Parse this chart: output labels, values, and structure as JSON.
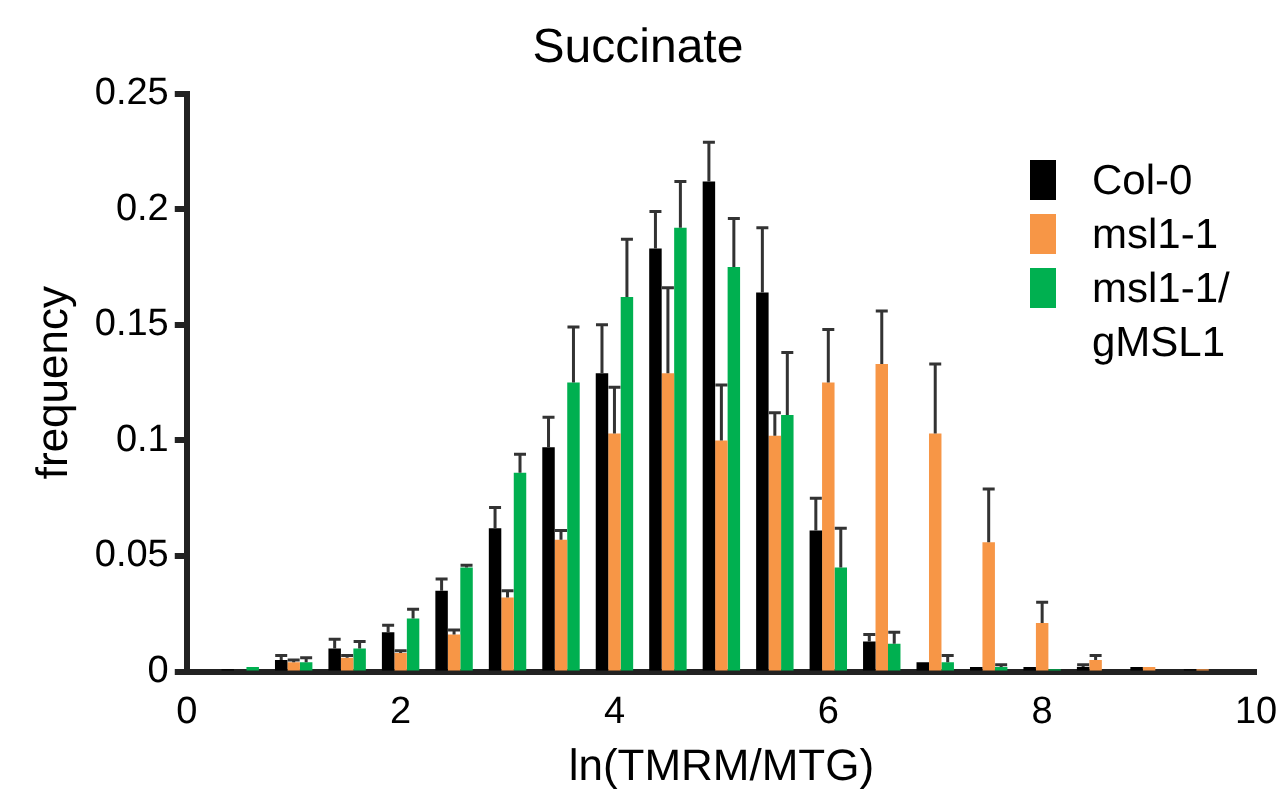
{
  "chart_data": {
    "type": "bar",
    "title": "Succinate",
    "xlabel": "ln(TMRM/MTG)",
    "ylabel": "frequency",
    "x": [
      0.5,
      1.0,
      1.5,
      2.0,
      2.5,
      3.0,
      3.5,
      4.0,
      4.5,
      5.0,
      5.5,
      6.0,
      6.5,
      7.0,
      7.5,
      8.0,
      8.5,
      9.0,
      9.5
    ],
    "series": [
      {
        "name": "Col-0",
        "color": "#000000",
        "values": [
          0.001,
          0.005,
          0.01,
          0.017,
          0.035,
          0.062,
          0.097,
          0.129,
          0.183,
          0.212,
          0.164,
          0.061,
          0.013,
          0.004,
          0.002,
          0.002,
          0.002,
          0.002,
          0.001
        ],
        "errors": [
          null,
          0.002,
          0.004,
          0.003,
          0.005,
          0.009,
          0.013,
          0.021,
          0.016,
          0.017,
          0.028,
          0.014,
          0.003,
          null,
          null,
          null,
          0.001,
          null,
          null
        ]
      },
      {
        "name": "msl1-1",
        "color": "#f79646",
        "values": [
          0,
          0.004,
          0.006,
          0.008,
          0.016,
          0.032,
          0.057,
          0.103,
          0.129,
          0.1,
          0.102,
          0.125,
          0.133,
          0.103,
          0.056,
          0.021,
          0.005,
          0.002,
          0.001
        ],
        "errors": [
          null,
          0.001,
          0.001,
          0.001,
          0.002,
          0.003,
          0.004,
          0.02,
          0.037,
          0.024,
          0.01,
          0.023,
          0.023,
          0.03,
          0.023,
          0.009,
          0.002,
          null,
          null
        ]
      },
      {
        "name": "msl1-1/gMSL1",
        "color": "#00b050",
        "values": [
          0.002,
          0.004,
          0.01,
          0.023,
          0.045,
          0.086,
          0.125,
          0.162,
          0.192,
          0.175,
          0.111,
          0.045,
          0.012,
          0.004,
          0.002,
          0.001,
          0,
          0,
          0
        ],
        "errors": [
          null,
          0.002,
          0.003,
          0.004,
          0.001,
          0.008,
          0.024,
          0.025,
          0.02,
          0.021,
          0.027,
          0.017,
          0.005,
          0.003,
          0.001,
          null,
          null,
          null,
          null
        ]
      }
    ],
    "xlim": [
      0,
      10
    ],
    "xticks": [
      0,
      2,
      4,
      6,
      8,
      10
    ],
    "ylim": [
      0,
      0.25
    ],
    "yticks": [
      0,
      0.05,
      0.1,
      0.15,
      0.2,
      0.25
    ],
    "grid": false,
    "legend": "top right"
  }
}
